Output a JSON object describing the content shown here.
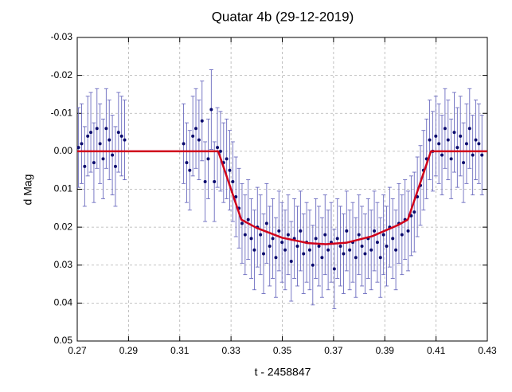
{
  "chart_data": {
    "type": "scatter",
    "title": "Quatar 4b (29-12-2019)",
    "xlabel": "t - 2458847",
    "ylabel": "d Mag",
    "xlim": [
      0.27,
      0.43
    ],
    "xticks": [
      0.27,
      0.29,
      0.31,
      0.33,
      0.35,
      0.37,
      0.39,
      0.41,
      0.43
    ],
    "ylim": [
      -0.03,
      0.05
    ],
    "y_inverted": true,
    "yticks": [
      -0.03,
      -0.02,
      -0.01,
      {
        "value": 0,
        "label": "0.00"
      },
      0.01,
      0.02,
      0.03,
      0.04,
      0.05
    ],
    "grid": true,
    "series": [
      {
        "type": "errorbar-points",
        "color": "#0a0a6e",
        "error_color": "#6b6bbf",
        "error": 0.0105,
        "x": [
          0.2705,
          0.2717,
          0.2729,
          0.2741,
          0.2753,
          0.2765,
          0.2777,
          0.2789,
          0.2801,
          0.2813,
          0.2825,
          0.2837,
          0.2849,
          0.2861,
          0.2873,
          0.2885,
          0.3115,
          0.3127,
          0.3139,
          0.3151,
          0.3163,
          0.3175,
          0.3187,
          0.3199,
          0.3211,
          0.3223,
          0.3235,
          0.3247,
          0.3259,
          0.3271,
          0.3283,
          0.3295,
          0.3307,
          0.3319,
          0.3331,
          0.3343,
          0.3355,
          0.3367,
          0.3379,
          0.3391,
          0.3403,
          0.3415,
          0.3427,
          0.3439,
          0.3451,
          0.3463,
          0.3475,
          0.3487,
          0.3499,
          0.3511,
          0.3523,
          0.3535,
          0.3547,
          0.3559,
          0.3571,
          0.3583,
          0.3595,
          0.3607,
          0.3619,
          0.3631,
          0.3643,
          0.3655,
          0.3667,
          0.3679,
          0.3691,
          0.3703,
          0.3715,
          0.3727,
          0.3739,
          0.3751,
          0.3763,
          0.3775,
          0.3787,
          0.3799,
          0.3811,
          0.3823,
          0.3835,
          0.3847,
          0.3859,
          0.3871,
          0.3883,
          0.3895,
          0.3907,
          0.3919,
          0.3931,
          0.3943,
          0.3955,
          0.3967,
          0.3979,
          0.3991,
          0.4003,
          0.4015,
          0.4027,
          0.4039,
          0.4051,
          0.4063,
          0.4075,
          0.4087,
          0.4099,
          0.4111,
          0.4123,
          0.4135,
          0.4147,
          0.4159,
          0.4171,
          0.4183,
          0.4195,
          0.4207,
          0.4219,
          0.4231,
          0.4243,
          0.4255,
          0.4267,
          0.4279
        ],
        "values": [
          -0.001,
          -0.002,
          0.004,
          -0.004,
          -0.005,
          0.003,
          -0.006,
          -0.002,
          0.002,
          -0.006,
          -0.003,
          0.001,
          0.004,
          -0.005,
          -0.004,
          -0.003,
          -0.002,
          0.003,
          0.005,
          -0.004,
          -0.006,
          -0.003,
          -0.008,
          0.008,
          0.002,
          -0.011,
          0.008,
          -0.001,
          0.0,
          0.003,
          0.002,
          0.005,
          0.008,
          0.012,
          0.015,
          0.019,
          0.022,
          0.018,
          0.023,
          0.026,
          0.02,
          0.022,
          0.027,
          0.019,
          0.025,
          0.023,
          0.028,
          0.021,
          0.024,
          0.026,
          0.022,
          0.029,
          0.023,
          0.025,
          0.021,
          0.027,
          0.024,
          0.026,
          0.03,
          0.023,
          0.025,
          0.028,
          0.022,
          0.026,
          0.024,
          0.031,
          0.023,
          0.025,
          0.027,
          0.021,
          0.026,
          0.024,
          0.028,
          0.022,
          0.025,
          0.027,
          0.023,
          0.026,
          0.021,
          0.024,
          0.028,
          0.022,
          0.025,
          0.02,
          0.023,
          0.026,
          0.019,
          0.022,
          0.018,
          0.021,
          0.017,
          0.016,
          0.012,
          0.009,
          0.005,
          0.002,
          -0.003,
          0.0,
          -0.004,
          -0.002,
          0.001,
          -0.006,
          -0.003,
          0.002,
          -0.005,
          -0.001,
          -0.004,
          0.003,
          -0.002,
          -0.006,
          0.001,
          -0.003,
          -0.002,
          0.001
        ]
      },
      {
        "type": "line",
        "color": "#d0021b",
        "x": [
          0.27,
          0.325,
          0.328,
          0.331,
          0.334,
          0.34,
          0.35,
          0.36,
          0.367,
          0.375,
          0.385,
          0.395,
          0.399,
          0.402,
          0.405,
          0.408,
          0.43
        ],
        "values": [
          0,
          0,
          0.006,
          0.012,
          0.018,
          0.0202,
          0.0228,
          0.0242,
          0.0245,
          0.0241,
          0.0224,
          0.0195,
          0.018,
          0.012,
          0.006,
          0,
          0
        ]
      }
    ]
  }
}
